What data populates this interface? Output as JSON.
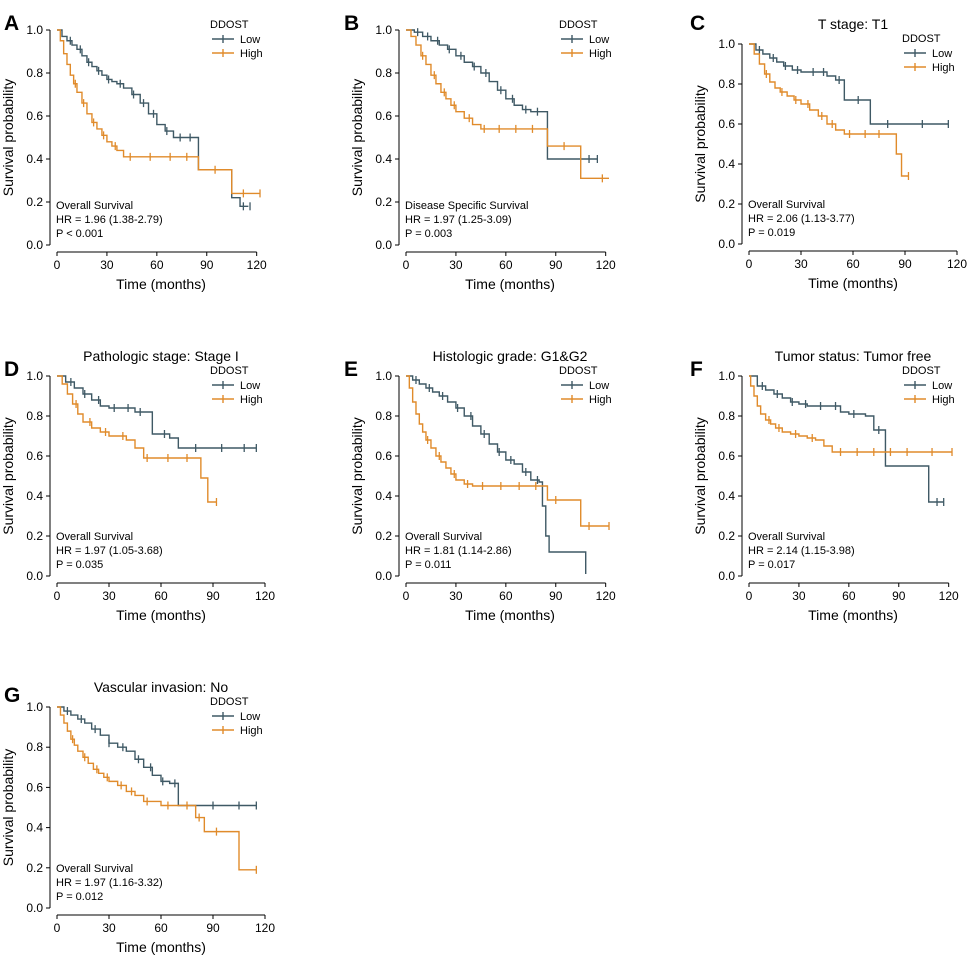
{
  "colors": {
    "low": "#3f5965",
    "high": "#e08b2b",
    "axis": "#000000"
  },
  "chart_data": [
    {
      "type": "line",
      "panel": "A",
      "title": "",
      "xlabel": "Time (months)",
      "ylabel": "Survival probability",
      "xlim": [
        0,
        125
      ],
      "ylim": [
        0,
        1
      ],
      "xticks": [
        0,
        30,
        60,
        90,
        120
      ],
      "yticks": [
        0.0,
        0.2,
        0.4,
        0.6,
        0.8,
        1.0
      ],
      "legend_title": "DDOST",
      "stats": [
        "Overall Survival",
        "HR = 1.96 (1.38-2.79)",
        "P < 0.001"
      ],
      "series": [
        {
          "name": "Low",
          "color_key": "low",
          "x": [
            0,
            3,
            6,
            9,
            12,
            15,
            18,
            21,
            24,
            27,
            30,
            33,
            36,
            40,
            45,
            50,
            55,
            60,
            65,
            70,
            75,
            82,
            85,
            100,
            105,
            110,
            115
          ],
          "y": [
            1,
            0.97,
            0.95,
            0.93,
            0.91,
            0.88,
            0.85,
            0.83,
            0.81,
            0.79,
            0.77,
            0.76,
            0.75,
            0.73,
            0.7,
            0.66,
            0.61,
            0.56,
            0.53,
            0.5,
            0.5,
            0.5,
            0.35,
            0.35,
            0.22,
            0.18,
            0.18
          ],
          "censor_x": [
            8,
            14,
            19,
            25,
            31,
            38,
            46,
            52,
            58,
            66,
            74,
            80,
            112,
            116
          ]
        },
        {
          "name": "High",
          "color_key": "high",
          "x": [
            0,
            2,
            4,
            6,
            8,
            10,
            12,
            15,
            18,
            21,
            24,
            27,
            30,
            33,
            36,
            40,
            50,
            60,
            70,
            80,
            85,
            93,
            105,
            110,
            122
          ],
          "y": [
            1,
            0.95,
            0.89,
            0.84,
            0.79,
            0.75,
            0.71,
            0.66,
            0.61,
            0.57,
            0.54,
            0.51,
            0.48,
            0.46,
            0.44,
            0.41,
            0.41,
            0.41,
            0.41,
            0.41,
            0.35,
            0.35,
            0.24,
            0.24,
            0.24
          ],
          "censor_x": [
            11,
            16,
            22,
            28,
            35,
            44,
            56,
            68,
            78,
            95,
            112,
            122
          ]
        }
      ]
    },
    {
      "type": "line",
      "panel": "B",
      "title": "",
      "xlabel": "Time (months)",
      "ylabel": "Survival probability",
      "xlim": [
        0,
        125
      ],
      "ylim": [
        0,
        1
      ],
      "xticks": [
        0,
        30,
        60,
        90,
        120
      ],
      "yticks": [
        0.0,
        0.2,
        0.4,
        0.6,
        0.8,
        1.0
      ],
      "legend_title": "DDOST",
      "stats": [
        "Disease Specific Survival",
        "HR = 1.97 (1.25-3.09)",
        "P = 0.003"
      ],
      "series": [
        {
          "name": "Low",
          "color_key": "low",
          "x": [
            0,
            5,
            10,
            15,
            20,
            25,
            30,
            35,
            40,
            45,
            50,
            55,
            60,
            65,
            70,
            75,
            80,
            85,
            100,
            115
          ],
          "y": [
            1,
            0.99,
            0.97,
            0.95,
            0.93,
            0.91,
            0.88,
            0.85,
            0.83,
            0.8,
            0.76,
            0.72,
            0.68,
            0.65,
            0.63,
            0.62,
            0.62,
            0.4,
            0.4,
            0.4
          ],
          "censor_x": [
            7,
            13,
            19,
            26,
            33,
            41,
            48,
            57,
            64,
            72,
            79,
            110,
            115
          ]
        },
        {
          "name": "High",
          "color_key": "high",
          "x": [
            0,
            3,
            6,
            9,
            12,
            15,
            18,
            21,
            24,
            27,
            30,
            35,
            40,
            45,
            50,
            60,
            70,
            80,
            85,
            100,
            105,
            122
          ],
          "y": [
            1,
            0.97,
            0.93,
            0.88,
            0.84,
            0.79,
            0.75,
            0.71,
            0.68,
            0.65,
            0.62,
            0.59,
            0.56,
            0.54,
            0.54,
            0.54,
            0.54,
            0.54,
            0.46,
            0.46,
            0.31,
            0.31
          ],
          "censor_x": [
            10,
            17,
            23,
            29,
            38,
            47,
            56,
            66,
            76,
            95,
            118
          ]
        }
      ]
    },
    {
      "type": "line",
      "panel": "C",
      "title": "T stage: T1",
      "xlabel": "Time (months)",
      "ylabel": "Survival probability",
      "xlim": [
        0,
        120
      ],
      "ylim": [
        0,
        1
      ],
      "xticks": [
        0,
        30,
        60,
        90,
        120
      ],
      "yticks": [
        0.0,
        0.2,
        0.4,
        0.6,
        0.8,
        1.0
      ],
      "legend_title": "DDOST",
      "stats": [
        "Overall Survival",
        "HR = 2.06 (1.13-3.77)",
        "P = 0.019"
      ],
      "series": [
        {
          "name": "Low",
          "color_key": "low",
          "x": [
            0,
            4,
            8,
            12,
            16,
            20,
            25,
            30,
            35,
            40,
            45,
            50,
            55,
            60,
            65,
            70,
            73,
            115
          ],
          "y": [
            1,
            0.97,
            0.95,
            0.93,
            0.91,
            0.89,
            0.87,
            0.86,
            0.86,
            0.86,
            0.84,
            0.82,
            0.72,
            0.72,
            0.72,
            0.6,
            0.6,
            0.6
          ],
          "censor_x": [
            6,
            14,
            21,
            28,
            37,
            43,
            52,
            63,
            80,
            100,
            115
          ]
        },
        {
          "name": "High",
          "color_key": "high",
          "x": [
            0,
            3,
            6,
            9,
            12,
            15,
            18,
            22,
            26,
            30,
            35,
            40,
            45,
            50,
            55,
            60,
            70,
            80,
            85,
            88,
            92
          ],
          "y": [
            1,
            0.95,
            0.9,
            0.85,
            0.81,
            0.78,
            0.76,
            0.74,
            0.72,
            0.7,
            0.67,
            0.64,
            0.6,
            0.57,
            0.55,
            0.55,
            0.55,
            0.55,
            0.45,
            0.34,
            0.34
          ],
          "censor_x": [
            10,
            19,
            27,
            34,
            42,
            48,
            58,
            67,
            75,
            92
          ]
        }
      ]
    },
    {
      "type": "line",
      "panel": "D",
      "title": "Pathologic stage: Stage I",
      "xlabel": "Time (months)",
      "ylabel": "Survival probability",
      "xlim": [
        0,
        120
      ],
      "ylim": [
        0,
        1
      ],
      "xticks": [
        0,
        30,
        60,
        90,
        120
      ],
      "yticks": [
        0.0,
        0.2,
        0.4,
        0.6,
        0.8,
        1.0
      ],
      "legend_title": "DDOST",
      "stats": [
        "Overall Survival",
        "HR = 1.97 (1.05-3.68)",
        "P = 0.035"
      ],
      "series": [
        {
          "name": "Low",
          "color_key": "low",
          "x": [
            0,
            5,
            10,
            15,
            20,
            25,
            30,
            35,
            40,
            45,
            50,
            55,
            60,
            65,
            70,
            75,
            115
          ],
          "y": [
            1,
            0.97,
            0.94,
            0.91,
            0.88,
            0.85,
            0.84,
            0.84,
            0.84,
            0.82,
            0.82,
            0.71,
            0.71,
            0.69,
            0.64,
            0.64,
            0.64
          ],
          "censor_x": [
            8,
            16,
            24,
            33,
            41,
            48,
            62,
            80,
            95,
            108,
            115
          ]
        },
        {
          "name": "High",
          "color_key": "high",
          "x": [
            0,
            3,
            6,
            9,
            12,
            15,
            20,
            25,
            30,
            40,
            45,
            50,
            60,
            70,
            80,
            83,
            87,
            92
          ],
          "y": [
            1,
            0.96,
            0.91,
            0.86,
            0.81,
            0.77,
            0.74,
            0.72,
            0.7,
            0.68,
            0.64,
            0.59,
            0.59,
            0.59,
            0.59,
            0.49,
            0.37,
            0.37
          ],
          "censor_x": [
            11,
            19,
            28,
            38,
            52,
            64,
            75,
            92
          ]
        }
      ]
    },
    {
      "type": "line",
      "panel": "E",
      "title": "Histologic grade: G1&G2",
      "xlabel": "Time (months)",
      "ylabel": "Survival probability",
      "xlim": [
        0,
        125
      ],
      "ylim": [
        0,
        1
      ],
      "xticks": [
        0,
        30,
        60,
        90,
        120
      ],
      "yticks": [
        0.0,
        0.2,
        0.4,
        0.6,
        0.8,
        1.0
      ],
      "legend_title": "DDOST",
      "stats": [
        "Overall Survival",
        "HR = 1.81 (1.14-2.86)",
        "P = 0.011"
      ],
      "series": [
        {
          "name": "Low",
          "color_key": "low",
          "x": [
            0,
            4,
            8,
            12,
            16,
            20,
            25,
            30,
            35,
            40,
            45,
            50,
            55,
            60,
            65,
            70,
            75,
            80,
            82,
            84,
            86,
            108
          ],
          "y": [
            1,
            0.98,
            0.96,
            0.94,
            0.92,
            0.9,
            0.87,
            0.84,
            0.8,
            0.75,
            0.71,
            0.66,
            0.62,
            0.58,
            0.56,
            0.52,
            0.48,
            0.47,
            0.35,
            0.2,
            0.12,
            0.01
          ],
          "censor_x": [
            6,
            14,
            22,
            31,
            39,
            47,
            56,
            63,
            72,
            79
          ]
        },
        {
          "name": "High",
          "color_key": "high",
          "x": [
            0,
            2,
            4,
            6,
            8,
            10,
            12,
            15,
            18,
            21,
            24,
            27,
            30,
            35,
            40,
            50,
            60,
            70,
            80,
            85,
            95,
            105,
            122
          ],
          "y": [
            1,
            0.94,
            0.87,
            0.81,
            0.76,
            0.72,
            0.68,
            0.64,
            0.6,
            0.57,
            0.54,
            0.51,
            0.48,
            0.46,
            0.45,
            0.45,
            0.45,
            0.45,
            0.45,
            0.38,
            0.38,
            0.25,
            0.25
          ],
          "censor_x": [
            13,
            20,
            29,
            37,
            46,
            57,
            68,
            78,
            90,
            110,
            122
          ]
        }
      ]
    },
    {
      "type": "line",
      "panel": "F",
      "title": "Tumor status: Tumor free",
      "xlabel": "Time (months)",
      "ylabel": "Survival probability",
      "xlim": [
        0,
        125
      ],
      "ylim": [
        0,
        1
      ],
      "xticks": [
        0,
        30,
        60,
        90,
        120
      ],
      "yticks": [
        0.0,
        0.2,
        0.4,
        0.6,
        0.8,
        1.0
      ],
      "legend_title": "DDOST",
      "stats": [
        "Overall Survival",
        "HR = 2.14 (1.15-3.98)",
        "P = 0.017"
      ],
      "series": [
        {
          "name": "Low",
          "color_key": "low",
          "x": [
            0,
            5,
            10,
            15,
            20,
            25,
            30,
            35,
            40,
            50,
            55,
            60,
            70,
            75,
            82,
            90,
            108,
            113,
            117
          ],
          "y": [
            1,
            0.95,
            0.93,
            0.91,
            0.89,
            0.87,
            0.86,
            0.85,
            0.85,
            0.85,
            0.82,
            0.81,
            0.8,
            0.73,
            0.55,
            0.55,
            0.37,
            0.37,
            0.37
          ],
          "censor_x": [
            8,
            17,
            26,
            34,
            43,
            52,
            63,
            78,
            113,
            117
          ]
        },
        {
          "name": "High",
          "color_key": "high",
          "x": [
            0,
            1,
            3,
            5,
            7,
            10,
            13,
            16,
            20,
            25,
            30,
            35,
            40,
            45,
            50,
            60,
            80,
            100,
            122
          ],
          "y": [
            1,
            0.95,
            0.9,
            0.85,
            0.81,
            0.78,
            0.76,
            0.74,
            0.72,
            0.71,
            0.7,
            0.69,
            0.68,
            0.65,
            0.62,
            0.62,
            0.62,
            0.62,
            0.62
          ],
          "censor_x": [
            12,
            18,
            28,
            38,
            55,
            65,
            75,
            85,
            95,
            110,
            122
          ]
        }
      ]
    },
    {
      "type": "line",
      "panel": "G",
      "title": "Vascular invasion: No",
      "xlabel": "Time (months)",
      "ylabel": "Survival probability",
      "xlim": [
        0,
        120
      ],
      "ylim": [
        0,
        1
      ],
      "xticks": [
        0,
        30,
        60,
        90,
        120
      ],
      "yticks": [
        0.0,
        0.2,
        0.4,
        0.6,
        0.8,
        1.0
      ],
      "legend_title": "DDOST",
      "stats": [
        "Overall Survival",
        "HR = 1.97 (1.16-3.32)",
        "P = 0.012"
      ],
      "series": [
        {
          "name": "Low",
          "color_key": "low",
          "x": [
            0,
            4,
            8,
            12,
            16,
            20,
            25,
            30,
            35,
            40,
            45,
            50,
            55,
            60,
            65,
            70,
            115
          ],
          "y": [
            1,
            0.98,
            0.96,
            0.94,
            0.92,
            0.89,
            0.86,
            0.82,
            0.8,
            0.78,
            0.74,
            0.7,
            0.66,
            0.63,
            0.62,
            0.51,
            0.51
          ],
          "censor_x": [
            6,
            14,
            22,
            30,
            38,
            47,
            54,
            61,
            68,
            90,
            105,
            115
          ]
        },
        {
          "name": "High",
          "color_key": "high",
          "x": [
            0,
            2,
            4,
            6,
            8,
            10,
            12,
            15,
            18,
            21,
            24,
            27,
            30,
            35,
            40,
            45,
            50,
            60,
            70,
            80,
            85,
            90,
            105,
            115
          ],
          "y": [
            1,
            0.96,
            0.92,
            0.88,
            0.84,
            0.81,
            0.78,
            0.75,
            0.72,
            0.69,
            0.67,
            0.65,
            0.63,
            0.61,
            0.58,
            0.56,
            0.53,
            0.51,
            0.51,
            0.45,
            0.38,
            0.38,
            0.19,
            0.19
          ],
          "censor_x": [
            9,
            16,
            23,
            29,
            37,
            43,
            52,
            64,
            75,
            82,
            92,
            115
          ]
        }
      ]
    }
  ]
}
